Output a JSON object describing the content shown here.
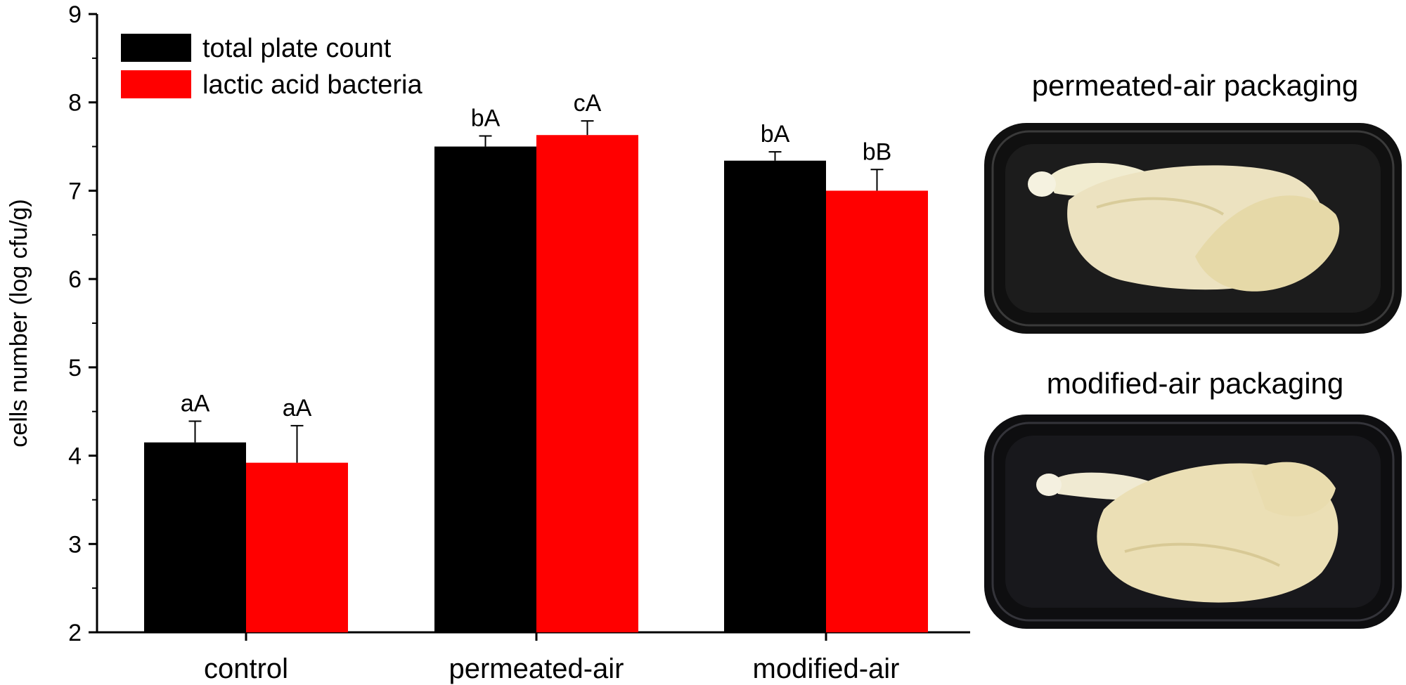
{
  "chart_data": {
    "type": "bar",
    "title": "",
    "xlabel": "",
    "ylabel": "cells number (log cfu/g)",
    "ylim": [
      2,
      9
    ],
    "yticks": [
      "2",
      "3",
      "4",
      "5",
      "6",
      "7",
      "8",
      "9"
    ],
    "categories": [
      "control",
      "permeated-air",
      "modified-air"
    ],
    "legend_position": "top-left",
    "grid": false,
    "series": [
      {
        "name": "total plate count",
        "color": "#000000",
        "values": [
          4.15,
          7.5,
          7.34
        ],
        "errors": [
          0.24,
          0.12,
          0.1
        ],
        "labels": [
          "aA",
          "bA",
          "bA"
        ]
      },
      {
        "name": "lactic acid bacteria",
        "color": "#ff0000",
        "values": [
          3.92,
          7.63,
          7.0
        ],
        "errors": [
          0.42,
          0.16,
          0.24
        ],
        "labels": [
          "aA",
          "cA",
          "bB"
        ]
      }
    ]
  },
  "photos": [
    {
      "title": "permeated-air packaging",
      "icon": "packaged-chicken-photo",
      "tray_color": "#1a1a1a"
    },
    {
      "title": "modified-air packaging",
      "icon": "packaged-chicken-photo",
      "tray_color": "#1a1a1a"
    }
  ]
}
